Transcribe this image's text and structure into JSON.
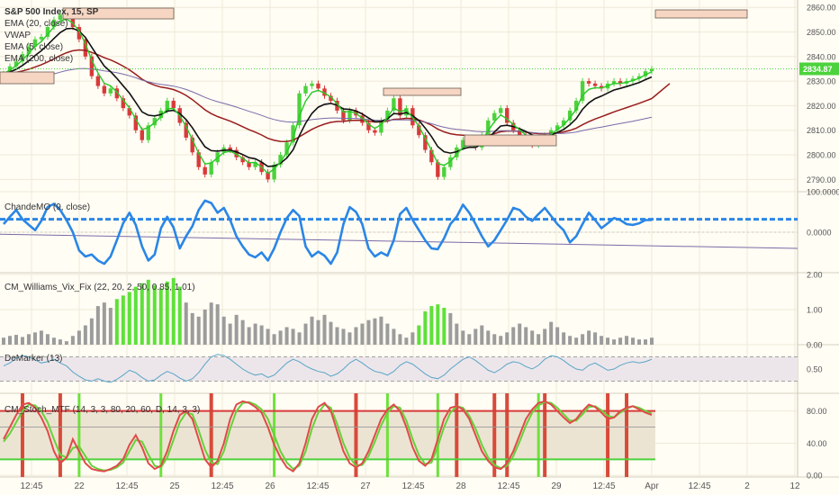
{
  "chart_data": {
    "type": "line",
    "instrument": "S&P 500 Index, 15, SP",
    "last_price": "2834.87",
    "x_ticks": [
      "12:45",
      "22",
      "12:45",
      "25",
      "12:45",
      "26",
      "12:45",
      "27",
      "12:45",
      "28",
      "12:45",
      "29",
      "12:45",
      "Apr",
      "12:45",
      "2",
      "12"
    ],
    "colors": {
      "up": "#4cd23c",
      "down": "#d83a3a",
      "ema20": "#27c927",
      "vwap": "#111111",
      "ema200": "#9a1c1c",
      "sma": "#7b6aa8",
      "cmo": "#2a86e6",
      "vix_hi": "#5fe03a",
      "vix": "#9c9c9c",
      "stoch_k": "#e04a4a",
      "stoch_d": "#67d13a"
    },
    "panels": [
      {
        "id": "price",
        "legend": [
          "S&P 500 Index, 15, SP",
          "EMA (20, close)",
          "VWAP",
          "EMA (5, close)",
          "EMA (200, close)"
        ],
        "y_ticks": [
          "2860.00",
          "2850.00",
          "2840.00",
          "2830.00",
          "2820.00",
          "2810.00",
          "2800.00",
          "2790.00"
        ],
        "ylim": [
          2785,
          2863
        ],
        "close": [
          2833,
          2836,
          2838,
          2841,
          2844,
          2847,
          2848,
          2852,
          2855,
          2857,
          2856,
          2852,
          2847,
          2840,
          2832,
          2828,
          2825,
          2827,
          2823,
          2819,
          2816,
          2810,
          2806,
          2812,
          2815,
          2818,
          2822,
          2819,
          2813,
          2807,
          2801,
          2795,
          2792,
          2797,
          2801,
          2803,
          2802,
          2799,
          2797,
          2795,
          2797,
          2793,
          2790,
          2796,
          2800,
          2805,
          2812,
          2825,
          2828,
          2829,
          2827,
          2824,
          2822,
          2818,
          2814,
          2818,
          2816,
          2813,
          2810,
          2809,
          2814,
          2818,
          2823,
          2816,
          2819,
          2812,
          2808,
          2802,
          2797,
          2791,
          2795,
          2799,
          2803,
          2806,
          2805,
          2803,
          2808,
          2814,
          2817,
          2819,
          2813,
          2810,
          2808,
          2806,
          2804,
          2805,
          2808,
          2810,
          2812,
          2814,
          2818,
          2822,
          2830,
          2829,
          2828,
          2827,
          2829,
          2830,
          2829,
          2830,
          2831,
          2832,
          2834,
          2835
        ]
      },
      {
        "id": "cmo",
        "legend": [
          "ChandeMO (9, close)"
        ],
        "y_ticks": [
          "100.0000",
          "0.0000"
        ],
        "ylim": [
          -100,
          100
        ],
        "values": [
          20,
          38,
          55,
          32,
          18,
          5,
          28,
          62,
          70,
          55,
          30,
          0,
          -45,
          -60,
          -55,
          -70,
          -78,
          -60,
          -20,
          22,
          48,
          18,
          -35,
          -70,
          -55,
          10,
          38,
          12,
          -40,
          -10,
          15,
          55,
          78,
          72,
          48,
          60,
          30,
          -10,
          -35,
          -55,
          -62,
          -50,
          -70,
          -40,
          0,
          35,
          55,
          40,
          -35,
          -60,
          -48,
          -58,
          -78,
          -50,
          20,
          62,
          50,
          20,
          -40,
          -60,
          -50,
          -58,
          -20,
          45,
          60,
          30,
          5,
          -20,
          -40,
          -42,
          -15,
          20,
          38,
          68,
          48,
          20,
          -10,
          -35,
          -20,
          5,
          30,
          60,
          55,
          38,
          28,
          45,
          60,
          40,
          20,
          5,
          -25,
          -10,
          20,
          48,
          30,
          10,
          22,
          35,
          30,
          20,
          18,
          22,
          30,
          30
        ],
        "threshold": 32
      },
      {
        "id": "vix",
        "legend": [
          "CM_Williams_Vix_Fix (22, 20, 2, 50, 0.85, 1.01)"
        ],
        "y_ticks": [
          "2.00",
          "1.00",
          "0.00"
        ],
        "ylim": [
          0,
          2.05
        ],
        "values": [
          0.2,
          0.25,
          0.28,
          0.22,
          0.3,
          0.35,
          0.4,
          0.3,
          0.2,
          0.15,
          0.1,
          0.25,
          0.4,
          0.55,
          0.75,
          1.1,
          1.2,
          1.05,
          1.3,
          1.4,
          1.5,
          1.65,
          1.75,
          1.85,
          1.7,
          1.6,
          1.8,
          1.9,
          1.65,
          1.2,
          0.9,
          0.8,
          1.0,
          1.2,
          1.15,
          0.8,
          0.6,
          0.85,
          0.7,
          0.5,
          0.6,
          0.55,
          0.45,
          0.3,
          0.4,
          0.5,
          0.45,
          0.35,
          0.6,
          0.8,
          0.7,
          0.85,
          0.65,
          0.5,
          0.45,
          0.35,
          0.5,
          0.6,
          0.7,
          0.75,
          0.8,
          0.6,
          0.45,
          0.3,
          0.2,
          0.35,
          0.55,
          0.95,
          1.1,
          1.15,
          1.05,
          0.9,
          0.6,
          0.4,
          0.3,
          0.45,
          0.55,
          0.4,
          0.3,
          0.25,
          0.35,
          0.5,
          0.6,
          0.5,
          0.4,
          0.3,
          0.45,
          0.65,
          0.5,
          0.35,
          0.25,
          0.2,
          0.3,
          0.4,
          0.35,
          0.25,
          0.2,
          0.15,
          0.2,
          0.25,
          0.2,
          0.15,
          0.15,
          0.2
        ],
        "highlight_from": 18,
        "highlight_to": 28,
        "highlight2_from": 66,
        "highlight2_to": 70
      },
      {
        "id": "demarker",
        "legend": [
          "DeMarker (13)"
        ],
        "y_ticks": [
          "0.50"
        ],
        "ylim": [
          0.1,
          0.9
        ],
        "values": [
          0.55,
          0.6,
          0.68,
          0.72,
          0.7,
          0.65,
          0.6,
          0.62,
          0.66,
          0.6,
          0.55,
          0.45,
          0.38,
          0.32,
          0.3,
          0.34,
          0.3,
          0.28,
          0.33,
          0.4,
          0.48,
          0.44,
          0.36,
          0.3,
          0.32,
          0.4,
          0.46,
          0.42,
          0.35,
          0.3,
          0.34,
          0.44,
          0.58,
          0.7,
          0.74,
          0.72,
          0.66,
          0.58,
          0.5,
          0.44,
          0.4,
          0.42,
          0.36,
          0.4,
          0.5,
          0.6,
          0.66,
          0.62,
          0.55,
          0.5,
          0.46,
          0.44,
          0.38,
          0.42,
          0.5,
          0.6,
          0.66,
          0.6,
          0.52,
          0.46,
          0.44,
          0.4,
          0.46,
          0.56,
          0.62,
          0.58,
          0.5,
          0.42,
          0.36,
          0.34,
          0.4,
          0.5,
          0.58,
          0.66,
          0.7,
          0.64,
          0.56,
          0.48,
          0.44,
          0.5,
          0.58,
          0.62,
          0.6,
          0.54,
          0.5,
          0.56,
          0.66,
          0.72,
          0.7,
          0.64,
          0.56,
          0.5,
          0.48,
          0.56,
          0.6,
          0.54,
          0.48,
          0.5,
          0.56,
          0.6,
          0.62,
          0.6,
          0.62,
          0.66
        ]
      },
      {
        "id": "stoch",
        "legend": [
          "CM_Stoch_MTF (14, 3, 3, 80, 20, 60, D, 14, 3, 3)"
        ],
        "y_ticks": [
          "80.00",
          "40.00",
          "0.00"
        ],
        "ylim": [
          -2,
          102
        ],
        "k": [
          45,
          60,
          75,
          88,
          90,
          84,
          72,
          55,
          30,
          15,
          22,
          45,
          30,
          15,
          8,
          6,
          5,
          8,
          12,
          20,
          38,
          50,
          35,
          15,
          8,
          12,
          30,
          55,
          75,
          80,
          70,
          45,
          20,
          10,
          18,
          40,
          70,
          88,
          92,
          90,
          85,
          78,
          60,
          38,
          22,
          10,
          5,
          15,
          40,
          70,
          85,
          90,
          80,
          55,
          30,
          15,
          10,
          15,
          30,
          50,
          70,
          82,
          88,
          80,
          60,
          35,
          18,
          12,
          20,
          45,
          70,
          84,
          86,
          82,
          70,
          50,
          30,
          18,
          10,
          8,
          15,
          30,
          50,
          70,
          82,
          90,
          92,
          88,
          80,
          72,
          65,
          70,
          80,
          88,
          85,
          78,
          70,
          72,
          80,
          84,
          86,
          82,
          78,
          75
        ],
        "d": [
          42,
          52,
          66,
          80,
          88,
          87,
          80,
          66,
          45,
          26,
          22,
          34,
          36,
          24,
          12,
          8,
          6,
          7,
          10,
          16,
          30,
          44,
          42,
          26,
          12,
          10,
          22,
          44,
          66,
          78,
          76,
          56,
          32,
          16,
          14,
          30,
          58,
          80,
          90,
          91,
          88,
          82,
          70,
          50,
          30,
          16,
          8,
          12,
          30,
          58,
          78,
          88,
          84,
          64,
          40,
          22,
          12,
          13,
          24,
          42,
          62,
          78,
          86,
          84,
          68,
          45,
          25,
          14,
          16,
          36,
          60,
          78,
          86,
          84,
          74,
          58,
          38,
          22,
          13,
          9,
          12,
          24,
          42,
          62,
          78,
          87,
          91,
          90,
          84,
          76,
          68,
          68,
          76,
          85,
          86,
          81,
          74,
          72,
          78,
          83,
          86,
          84,
          80,
          77
        ],
        "upper": 80,
        "lower": 20,
        "mid": 60,
        "red_markers": [
          3,
          9,
          33,
          56,
          72,
          78,
          80,
          86,
          96,
          99
        ],
        "green_markers": [
          12,
          25,
          43,
          61,
          69,
          85
        ]
      }
    ]
  }
}
